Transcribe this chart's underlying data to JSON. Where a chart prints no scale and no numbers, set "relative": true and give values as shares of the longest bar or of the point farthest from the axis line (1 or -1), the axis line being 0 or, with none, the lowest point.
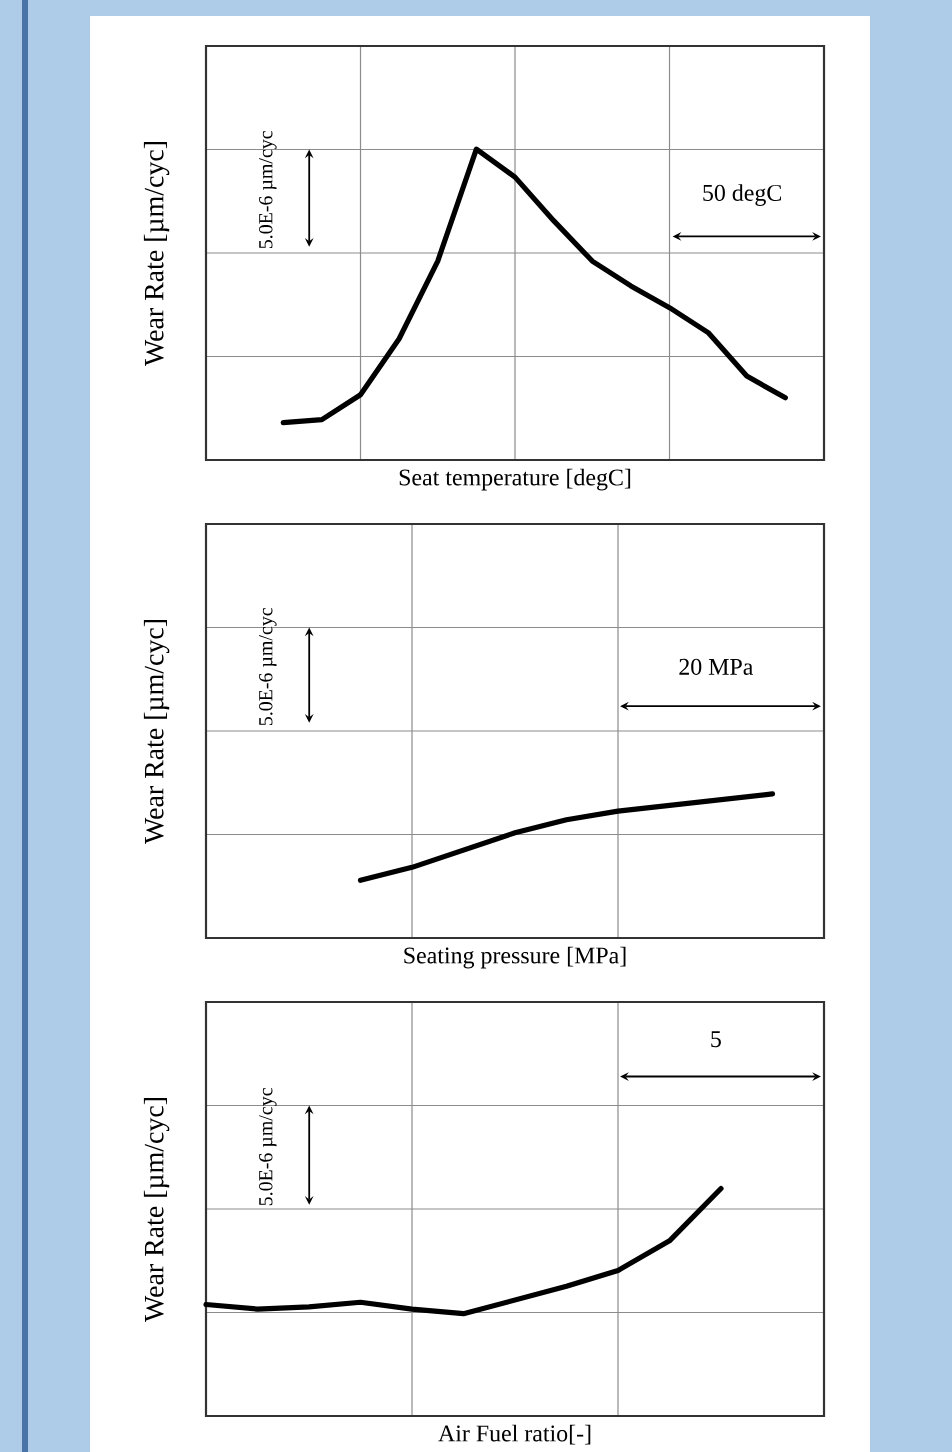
{
  "chart_data": [
    {
      "type": "line",
      "xlabel": "Seat temperature [degC]",
      "ylabel": "Wear Rate [µm/cyc]",
      "relative": true,
      "grid": true,
      "tick_labels": false,
      "categories": [
        null,
        null,
        null,
        null,
        null,
        null,
        null,
        null,
        null,
        null,
        null,
        null,
        null,
        null,
        null,
        null,
        null
      ],
      "series": [
        {
          "color": "#000000",
          "values": [
            null,
            null,
            0.12,
            0.13,
            0.21,
            0.39,
            0.64,
            1.0,
            0.91,
            0.77,
            0.64,
            0.56,
            0.49,
            0.41,
            0.27,
            0.2,
            null
          ]
        }
      ],
      "annotations": [
        "5.0E-6 µm/cyc",
        "50 degC"
      ]
    },
    {
      "type": "line",
      "xlabel": "Seating pressure [MPa]",
      "ylabel": "Wear Rate [µm/cyc]",
      "relative": true,
      "grid": true,
      "tick_labels": false,
      "categories": [
        null,
        null,
        null,
        null,
        null,
        null,
        null,
        null,
        null,
        null,
        null,
        null,
        null
      ],
      "series": [
        {
          "color": "#000000",
          "values": [
            null,
            null,
            null,
            0.4,
            0.49,
            0.61,
            0.73,
            0.82,
            0.88,
            0.92,
            0.96,
            1.0,
            null
          ]
        }
      ],
      "annotations": [
        "5.0E-6 µm/cyc",
        "20 MPa"
      ]
    },
    {
      "type": "line",
      "xlabel": "Air Fuel ratio[-]",
      "ylabel": "Wear Rate [µm/cyc]",
      "relative": true,
      "grid": true,
      "tick_labels": false,
      "categories": [
        null,
        null,
        null,
        null,
        null,
        null,
        null,
        null,
        null,
        null,
        null,
        null,
        null
      ],
      "series": [
        {
          "color": "#000000",
          "values": [
            0.49,
            0.47,
            0.48,
            0.5,
            0.47,
            0.45,
            0.51,
            0.57,
            0.64,
            0.77,
            1.0,
            null,
            null
          ]
        }
      ],
      "annotations": [
        "5.0E-6 µm/cyc",
        "5"
      ]
    }
  ]
}
